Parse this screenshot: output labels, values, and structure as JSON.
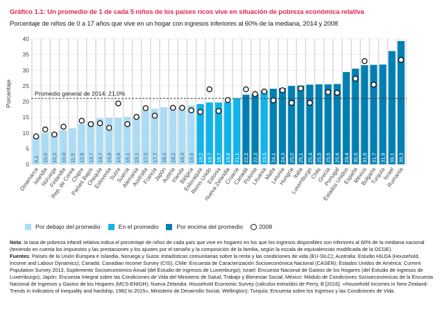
{
  "header": {
    "title": "Gráfico 1.1: Un promedio de 1 de cada 5 niños de los países ricos vive en situación de pobreza económica relativa",
    "subtitle": "Porcentaje de niños de 0 a 17 años que vive en un hogar con ingresos inferiores al 60% de la mediana, 2014 y 2008"
  },
  "colors": {
    "below": "#aadcf5",
    "at": "#10b4e8",
    "above": "#0080b2",
    "average_line": "#333333",
    "title": "#e2264d"
  },
  "chart_data": {
    "type": "bar",
    "title": "Gráfico 1.1: Un promedio de 1 de cada 5 niños de los países ricos vive en situación de pobreza económica relativa",
    "xlabel": "",
    "ylabel": "Porcentaje",
    "ylim": [
      0,
      40
    ],
    "yticks": [
      0,
      5,
      10,
      15,
      20,
      25,
      30,
      35,
      40
    ],
    "grid": true,
    "legend_position": "bottom",
    "average": {
      "value": 21.0,
      "label": "Promedio general de 2014: 21,0%"
    },
    "categories": [
      "Dinamarca",
      "Islandia",
      "Noruega",
      "Finlandia",
      "Rep. de Corea",
      "Chipre",
      "Países Bajos",
      "Chequia",
      "Eslovenia",
      "Suiza",
      "Suecia",
      "Alemania",
      "Australia",
      "Francia",
      "Japón",
      "Austria",
      "Irlanda",
      "Bélgica",
      "Eslovaquia",
      "Reino Unido",
      "Estonia",
      "Nueva Zelandia",
      "Croacia",
      "Canadá",
      "Polonia",
      "Lituania",
      "Malta",
      "Letonia",
      "Hungría",
      "Italia",
      "Luxemburgo",
      "Chile",
      "Grecia",
      "Portugal",
      "Estados Unidos",
      "España",
      "México",
      "Bulgaria",
      "Turquía",
      "Israel",
      "Rumanía"
    ],
    "value_labels": [
      "9,2",
      "10,0",
      "10,2",
      "10,9",
      "11,5",
      "12,8",
      "13,7",
      "14,7",
      "14,8",
      "14,8",
      "15,1",
      "15,1",
      "17,5",
      "17,7",
      "18,2",
      "18,2",
      "18,3",
      "18,8",
      "19,2",
      "19,7",
      "19,7",
      "19,8",
      "21,1",
      "22,2",
      "22,3",
      "23,5",
      "24,1",
      "24,3",
      "25,0",
      "25,1",
      "25,4",
      "25,5",
      "25,5",
      "25,6",
      "29,4",
      "30,5",
      "31,6",
      "31,7",
      "31,8",
      "36,1",
      "39,3"
    ],
    "series": [
      {
        "name": "2014",
        "values": [
          9.2,
          10.0,
          10.2,
          10.9,
          11.5,
          12.8,
          13.7,
          14.7,
          14.8,
          14.8,
          15.1,
          15.1,
          17.5,
          17.7,
          18.2,
          18.2,
          18.3,
          18.8,
          19.2,
          19.7,
          19.7,
          19.8,
          21.1,
          22.2,
          22.3,
          23.5,
          24.1,
          24.3,
          25.0,
          25.1,
          25.4,
          25.5,
          25.5,
          25.6,
          29.4,
          30.5,
          31.6,
          31.7,
          31.8,
          36.1,
          39.3
        ],
        "groups": [
          "below",
          "below",
          "below",
          "below",
          "below",
          "below",
          "below",
          "below",
          "below",
          "below",
          "below",
          "below",
          "below",
          "below",
          "below",
          "below",
          "below",
          "below",
          "at",
          "at",
          "at",
          "at",
          "at",
          "above",
          "above",
          "at",
          "above",
          "above",
          "above",
          "above",
          "above",
          "above",
          "above",
          "above",
          "above",
          "above",
          "above",
          "above",
          "above",
          "above",
          "above"
        ]
      },
      {
        "name": "2008",
        "values": [
          8.9,
          11.1,
          9.5,
          12.0,
          null,
          13.9,
          12.8,
          13.1,
          11.6,
          19.4,
          12.8,
          15.1,
          17.9,
          15.5,
          null,
          18.0,
          18.0,
          17.2,
          16.7,
          23.9,
          17.0,
          20.5,
          null,
          23.9,
          22.4,
          23.2,
          20.4,
          23.6,
          19.6,
          24.2,
          19.6,
          null,
          23.0,
          22.8,
          null,
          27.3,
          32.9,
          25.4,
          null,
          null,
          33.3
        ]
      }
    ]
  },
  "legend": {
    "items": [
      {
        "label": "Por debajo del promedio",
        "group": "below"
      },
      {
        "label": "En el promedio",
        "group": "at"
      },
      {
        "label": "Por encima del promedio",
        "group": "above"
      }
    ],
    "circle_label": "2008"
  },
  "notes": {
    "nota_label": "Nota",
    "nota_text": ": la tasa de pobreza infantil relativa indica el porcentaje de niños de cada país que vive en hogares en los que los ingresos disponibles son inferiores al 60% de la mediana nacional (teniendo en cuenta los impuestos y las prestaciones y los ajustes por el tamaño y la composición de la familia, según la escala de equivalencias modificada de la OCDE).",
    "fuentes_label": "Fuentes",
    "fuentes_text": ": Países de la Unión Europea e Islandia, Noruega y Suiza: estadísticas comunitarias sobre la renta y las condiciones de vida (EU-SILC); Australia: Estudio HILDA (Household, Income and Labour Dynamics); Canadá: Canadian Income Survey (CIS); Chile: Encuesta de Caracterización Socioeconómica Nacional (CASEN); Estados Unidos de América: Current Population Survey 2013, Suplemento Socioeconómico Anual (del Estudio de ingresos de Luxemburgo); Israel: Encuesta Nacional de Gastos de los Hogares (del Estudio de ingresos de Luxemburgo); Japón: Encuesta Integral sobre las Condiciones de Vida del Ministerio de Salud, Trabajo y Bienestar Social; México: Módulo de Condiciones Socioeconómicas de la Encuesta Nacional de Ingresos y Gastos de los Hogares (MCS-ENIGH); Nueva Zelandia: Household Economic Survey (cálculos extraídos de Perry, B [2016]. «Household Incomes in New Zealand: Trends in indicators of inequality and hardship, 1982 to 2015», Ministerio de Desarrollo Social, Wellington); Turquía: Encuesta sobre los Ingresos y las Condiciones de Vida."
  }
}
